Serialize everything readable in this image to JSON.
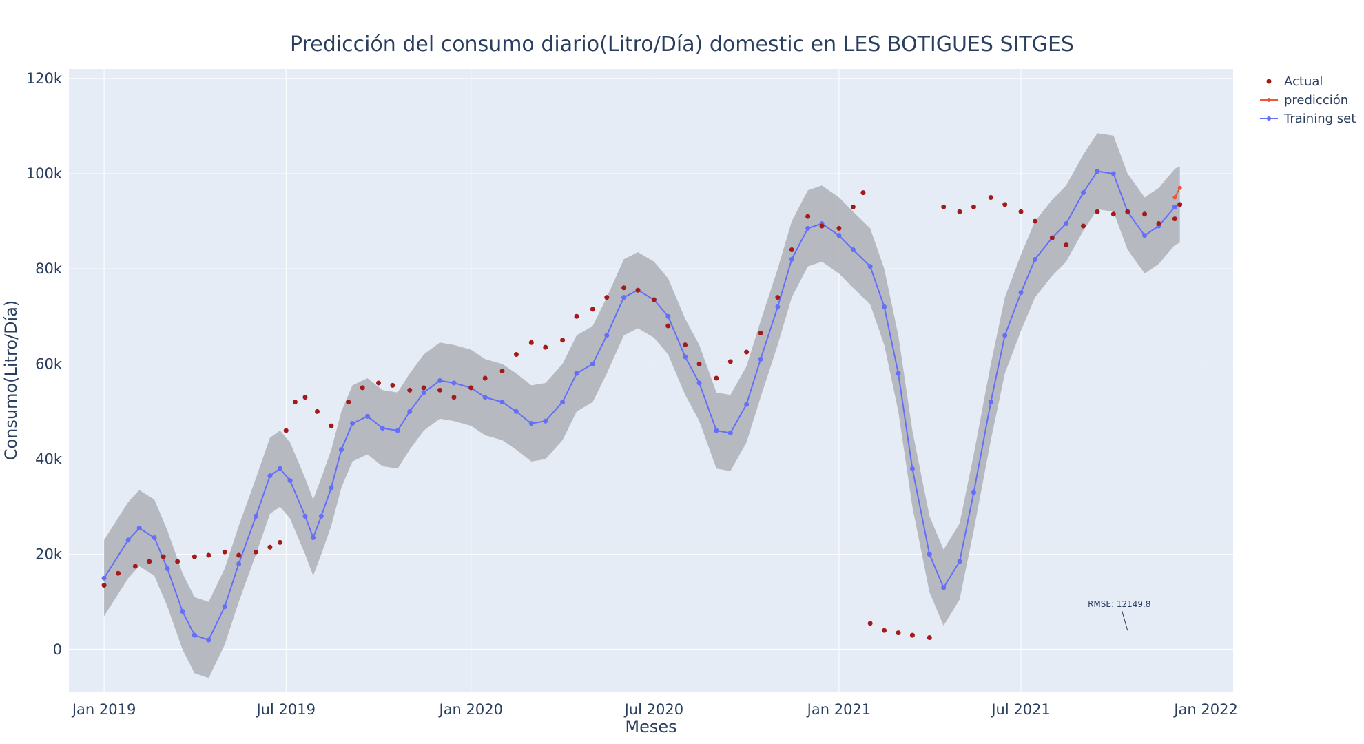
{
  "chart_data": {
    "type": "line",
    "title": "Predicción del consumo diario(Litro/Día) domestic en LES BOTIGUES SITGES",
    "xlabel": "Meses",
    "ylabel": "Consumo(Litro/Día)",
    "xlim": [
      "2018-11-27",
      "2022-01-28"
    ],
    "ylim": [
      -9000,
      122000
    ],
    "x_ticks": [
      {
        "date": "2019-01-01",
        "label": "Jan 2019"
      },
      {
        "date": "2019-07-01",
        "label": "Jul 2019"
      },
      {
        "date": "2020-01-01",
        "label": "Jan 2020"
      },
      {
        "date": "2020-07-01",
        "label": "Jul 2020"
      },
      {
        "date": "2021-01-01",
        "label": "Jan 2021"
      },
      {
        "date": "2021-07-01",
        "label": "Jul 2021"
      },
      {
        "date": "2022-01-01",
        "label": "Jan 2022"
      }
    ],
    "y_ticks": [
      {
        "value": 0,
        "label": "0"
      },
      {
        "value": 20000,
        "label": "20k"
      },
      {
        "value": 40000,
        "label": "40k"
      },
      {
        "value": 60000,
        "label": "60k"
      },
      {
        "value": 80000,
        "label": "80k"
      },
      {
        "value": 100000,
        "label": "100k"
      },
      {
        "value": 120000,
        "label": "120k"
      }
    ],
    "grid": true,
    "legend_position": "top-right",
    "series": [
      {
        "name": "Actual",
        "mode": "markers",
        "color": "#a31a1a",
        "points": [
          [
            "2019-01-01",
            13500
          ],
          [
            "2019-01-15",
            16000
          ],
          [
            "2019-02-01",
            17500
          ],
          [
            "2019-02-15",
            18500
          ],
          [
            "2019-03-01",
            19500
          ],
          [
            "2019-03-15",
            18500
          ],
          [
            "2019-04-01",
            19500
          ],
          [
            "2019-04-15",
            19800
          ],
          [
            "2019-05-01",
            20500
          ],
          [
            "2019-05-15",
            19800
          ],
          [
            "2019-06-01",
            20500
          ],
          [
            "2019-06-15",
            21500
          ],
          [
            "2019-06-25",
            22500
          ],
          [
            "2019-07-01",
            46000
          ],
          [
            "2019-07-10",
            52000
          ],
          [
            "2019-07-20",
            53000
          ],
          [
            "2019-08-01",
            50000
          ],
          [
            "2019-08-15",
            47000
          ],
          [
            "2019-09-01",
            52000
          ],
          [
            "2019-09-15",
            55000
          ],
          [
            "2019-10-01",
            56000
          ],
          [
            "2019-10-15",
            55500
          ],
          [
            "2019-11-01",
            54500
          ],
          [
            "2019-11-15",
            55000
          ],
          [
            "2019-12-01",
            54500
          ],
          [
            "2019-12-15",
            53000
          ],
          [
            "2020-01-01",
            55000
          ],
          [
            "2020-01-15",
            57000
          ],
          [
            "2020-02-01",
            58500
          ],
          [
            "2020-02-15",
            62000
          ],
          [
            "2020-03-01",
            64500
          ],
          [
            "2020-03-15",
            63500
          ],
          [
            "2020-04-01",
            65000
          ],
          [
            "2020-04-15",
            70000
          ],
          [
            "2020-05-01",
            71500
          ],
          [
            "2020-05-15",
            74000
          ],
          [
            "2020-06-01",
            76000
          ],
          [
            "2020-06-15",
            75500
          ],
          [
            "2020-07-01",
            73500
          ],
          [
            "2020-07-15",
            68000
          ],
          [
            "2020-08-01",
            64000
          ],
          [
            "2020-08-15",
            60000
          ],
          [
            "2020-09-01",
            57000
          ],
          [
            "2020-09-15",
            60500
          ],
          [
            "2020-10-01",
            62500
          ],
          [
            "2020-10-15",
            66500
          ],
          [
            "2020-11-01",
            74000
          ],
          [
            "2020-11-15",
            84000
          ],
          [
            "2020-12-01",
            91000
          ],
          [
            "2020-12-15",
            89000
          ],
          [
            "2021-01-01",
            88500
          ],
          [
            "2021-01-15",
            93000
          ],
          [
            "2021-01-25",
            96000
          ],
          [
            "2021-02-01",
            5500
          ],
          [
            "2021-02-15",
            4000
          ],
          [
            "2021-03-01",
            3500
          ],
          [
            "2021-03-15",
            3000
          ],
          [
            "2021-04-01",
            2500
          ],
          [
            "2021-04-15",
            93000
          ],
          [
            "2021-05-01",
            92000
          ],
          [
            "2021-05-15",
            93000
          ],
          [
            "2021-06-01",
            95000
          ],
          [
            "2021-06-15",
            93500
          ],
          [
            "2021-07-01",
            92000
          ],
          [
            "2021-07-15",
            90000
          ],
          [
            "2021-08-01",
            86500
          ],
          [
            "2021-08-15",
            85000
          ],
          [
            "2021-09-01",
            89000
          ],
          [
            "2021-09-15",
            92000
          ],
          [
            "2021-10-01",
            91500
          ],
          [
            "2021-10-15",
            92000
          ],
          [
            "2021-11-01",
            91500
          ],
          [
            "2021-11-15",
            89500
          ],
          [
            "2021-12-01",
            90500
          ],
          [
            "2021-12-06",
            93500
          ]
        ]
      },
      {
        "name": "predicción",
        "mode": "lines+markers",
        "color": "#ef553b",
        "points": [
          [
            "2021-12-01",
            95000
          ],
          [
            "2021-12-06",
            97000
          ]
        ]
      },
      {
        "name": "Training set",
        "mode": "lines+markers",
        "color": "#636efa",
        "band_color": "#b4b6bd",
        "band_halfwidth": 8000,
        "points": [
          [
            "2019-01-01",
            15000
          ],
          [
            "2019-01-25",
            23000
          ],
          [
            "2019-02-05",
            25500
          ],
          [
            "2019-02-20",
            23500
          ],
          [
            "2019-03-05",
            17000
          ],
          [
            "2019-03-20",
            8000
          ],
          [
            "2019-04-01",
            3000
          ],
          [
            "2019-04-15",
            2000
          ],
          [
            "2019-05-01",
            9000
          ],
          [
            "2019-05-15",
            18000
          ],
          [
            "2019-06-01",
            28000
          ],
          [
            "2019-06-15",
            36500
          ],
          [
            "2019-06-25",
            38000
          ],
          [
            "2019-07-05",
            35500
          ],
          [
            "2019-07-20",
            28000
          ],
          [
            "2019-07-28",
            23500
          ],
          [
            "2019-08-05",
            28000
          ],
          [
            "2019-08-15",
            34000
          ],
          [
            "2019-08-25",
            42000
          ],
          [
            "2019-09-05",
            47500
          ],
          [
            "2019-09-20",
            49000
          ],
          [
            "2019-10-05",
            46500
          ],
          [
            "2019-10-20",
            46000
          ],
          [
            "2019-11-01",
            50000
          ],
          [
            "2019-11-15",
            54000
          ],
          [
            "2019-12-01",
            56500
          ],
          [
            "2019-12-15",
            56000
          ],
          [
            "2020-01-01",
            55000
          ],
          [
            "2020-01-15",
            53000
          ],
          [
            "2020-02-01",
            52000
          ],
          [
            "2020-02-15",
            50000
          ],
          [
            "2020-03-01",
            47500
          ],
          [
            "2020-03-15",
            48000
          ],
          [
            "2020-04-01",
            52000
          ],
          [
            "2020-04-15",
            58000
          ],
          [
            "2020-05-01",
            60000
          ],
          [
            "2020-05-15",
            66000
          ],
          [
            "2020-06-01",
            74000
          ],
          [
            "2020-06-15",
            75500
          ],
          [
            "2020-07-01",
            73500
          ],
          [
            "2020-07-15",
            70000
          ],
          [
            "2020-08-01",
            61500
          ],
          [
            "2020-08-15",
            56000
          ],
          [
            "2020-09-01",
            46000
          ],
          [
            "2020-09-15",
            45500
          ],
          [
            "2020-10-01",
            51500
          ],
          [
            "2020-10-15",
            61000
          ],
          [
            "2020-11-01",
            72000
          ],
          [
            "2020-11-15",
            82000
          ],
          [
            "2020-12-01",
            88500
          ],
          [
            "2020-12-15",
            89500
          ],
          [
            "2021-01-01",
            87000
          ],
          [
            "2021-01-15",
            84000
          ],
          [
            "2021-02-01",
            80500
          ],
          [
            "2021-02-15",
            72000
          ],
          [
            "2021-03-01",
            58000
          ],
          [
            "2021-03-15",
            38000
          ],
          [
            "2021-04-01",
            20000
          ],
          [
            "2021-04-15",
            13000
          ],
          [
            "2021-05-01",
            18500
          ],
          [
            "2021-05-15",
            33000
          ],
          [
            "2021-06-01",
            52000
          ],
          [
            "2021-06-15",
            66000
          ],
          [
            "2021-07-01",
            75000
          ],
          [
            "2021-07-15",
            82000
          ],
          [
            "2021-08-01",
            86500
          ],
          [
            "2021-08-15",
            89500
          ],
          [
            "2021-09-01",
            96000
          ],
          [
            "2021-09-15",
            100500
          ],
          [
            "2021-10-01",
            100000
          ],
          [
            "2021-10-15",
            92000
          ],
          [
            "2021-11-01",
            87000
          ],
          [
            "2021-11-15",
            89000
          ],
          [
            "2021-12-01",
            93000
          ],
          [
            "2021-12-06",
            93500
          ]
        ]
      }
    ],
    "annotations": [
      {
        "text": "RMSE: 12149.8",
        "x": "2021-10-15",
        "y": 4000
      }
    ]
  }
}
